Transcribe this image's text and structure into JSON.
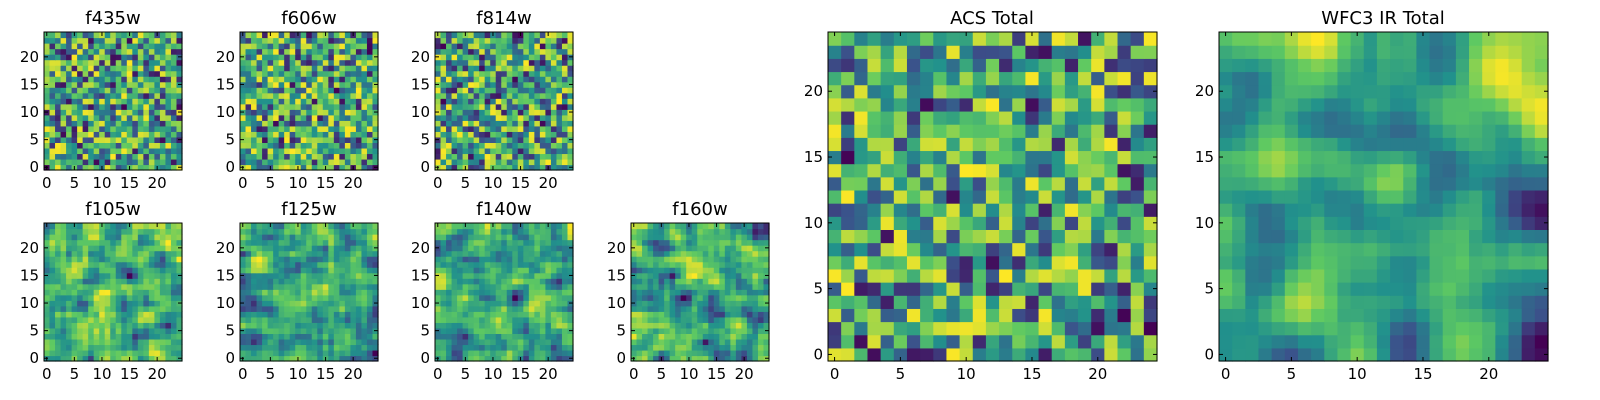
{
  "chart_data": [
    {
      "type": "heatmap",
      "title": "f435w",
      "grid_size": 25,
      "seed": 11,
      "smooth": 0,
      "ylim": [
        0,
        24
      ],
      "xticks": [
        0,
        5,
        10,
        15,
        20
      ],
      "yticks": [
        0,
        5,
        10,
        15,
        20
      ],
      "xtick_labels": [
        "0",
        "5",
        "10",
        "15",
        "20"
      ],
      "ytick_labels": [
        "0",
        "5",
        "10",
        "15",
        "20"
      ]
    },
    {
      "type": "heatmap",
      "title": "f606w",
      "grid_size": 25,
      "seed": 23,
      "smooth": 0,
      "ylim": [
        0,
        24
      ],
      "xticks": [
        0,
        5,
        10,
        15,
        20
      ],
      "yticks": [
        0,
        5,
        10,
        15,
        20
      ],
      "xtick_labels": [
        "0",
        "5",
        "10",
        "15",
        "20"
      ],
      "ytick_labels": [
        "0",
        "5",
        "10",
        "15",
        "20"
      ]
    },
    {
      "type": "heatmap",
      "title": "f814w",
      "grid_size": 25,
      "seed": 37,
      "smooth": 0,
      "ylim": [
        0,
        24
      ],
      "xticks": [
        0,
        5,
        10,
        15,
        20
      ],
      "yticks": [
        0,
        5,
        10,
        15,
        20
      ],
      "xtick_labels": [
        "0",
        "5",
        "10",
        "15",
        "20"
      ],
      "ytick_labels": [
        "0",
        "5",
        "10",
        "15",
        "20"
      ]
    },
    {
      "type": "heatmap",
      "title": "f105w",
      "grid_size": 25,
      "seed": 41,
      "smooth": 1,
      "ylim": [
        0,
        24
      ],
      "xticks": [
        0,
        5,
        10,
        15,
        20
      ],
      "yticks": [
        0,
        5,
        10,
        15,
        20
      ],
      "xtick_labels": [
        "0",
        "5",
        "10",
        "15",
        "20"
      ],
      "ytick_labels": [
        "0",
        "5",
        "10",
        "15",
        "20"
      ]
    },
    {
      "type": "heatmap",
      "title": "f125w",
      "grid_size": 25,
      "seed": 53,
      "smooth": 1,
      "ylim": [
        0,
        24
      ],
      "xticks": [
        0,
        5,
        10,
        15,
        20
      ],
      "yticks": [
        0,
        5,
        10,
        15,
        20
      ],
      "xtick_labels": [
        "0",
        "5",
        "10",
        "15",
        "20"
      ],
      "ytick_labels": [
        "0",
        "5",
        "10",
        "15",
        "20"
      ]
    },
    {
      "type": "heatmap",
      "title": "f140w",
      "grid_size": 25,
      "seed": 67,
      "smooth": 1,
      "ylim": [
        0,
        24
      ],
      "xticks": [
        0,
        5,
        10,
        15,
        20
      ],
      "yticks": [
        0,
        5,
        10,
        15,
        20
      ],
      "xtick_labels": [
        "0",
        "5",
        "10",
        "15",
        "20"
      ],
      "ytick_labels": [
        "0",
        "5",
        "10",
        "15",
        "20"
      ]
    },
    {
      "type": "heatmap",
      "title": "f160w",
      "grid_size": 25,
      "seed": 79,
      "smooth": 1,
      "ylim": [
        0,
        24
      ],
      "xticks": [
        0,
        5,
        10,
        15,
        20
      ],
      "yticks": [
        0,
        5,
        10,
        15,
        20
      ],
      "xtick_labels": [
        "0",
        "5",
        "10",
        "15",
        "20"
      ],
      "ytick_labels": [
        "0",
        "5",
        "10",
        "15",
        "20"
      ]
    },
    {
      "type": "heatmap",
      "title": "ACS Total",
      "grid_size": 25,
      "seed": 97,
      "smooth": 0,
      "ylim": [
        0,
        24
      ],
      "xticks": [
        0,
        5,
        10,
        15,
        20
      ],
      "yticks": [
        0,
        5,
        10,
        15,
        20
      ],
      "xtick_labels": [
        "0",
        "5",
        "10",
        "15",
        "20"
      ],
      "ytick_labels": [
        "0",
        "5",
        "10",
        "15",
        "20"
      ]
    },
    {
      "type": "heatmap",
      "title": "WFC3 IR Total",
      "grid_size": 25,
      "seed": 113,
      "smooth": 2,
      "ylim": [
        0,
        24
      ],
      "xticks": [
        0,
        5,
        10,
        15,
        20
      ],
      "yticks": [
        0,
        5,
        10,
        15,
        20
      ],
      "xtick_labels": [
        "0",
        "5",
        "10",
        "15",
        "20"
      ],
      "ytick_labels": [
        "0",
        "5",
        "10",
        "15",
        "20"
      ]
    }
  ],
  "colormap": {
    "name": "viridis-like",
    "stops": [
      "#440154",
      "#3b528b",
      "#21918c",
      "#5ec962",
      "#fde725"
    ]
  }
}
